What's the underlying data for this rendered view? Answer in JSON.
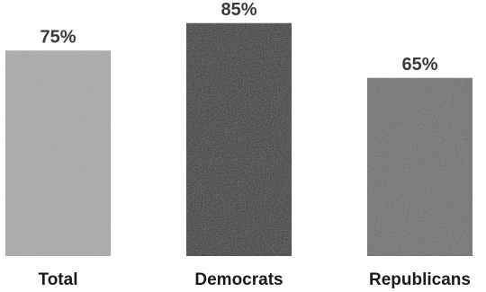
{
  "chart_data": {
    "type": "bar",
    "title": "",
    "xlabel": "",
    "ylabel": "",
    "categories": [
      "Total",
      "Democrats",
      "Republicans"
    ],
    "values": [
      75,
      85,
      65
    ],
    "value_labels": [
      "75%",
      "85%",
      "65%"
    ],
    "bar_colors": [
      "#a9a9a9",
      "#262626",
      "#6a6a6a"
    ],
    "ylim": [
      0,
      100
    ],
    "grid": false,
    "legend": "none"
  }
}
